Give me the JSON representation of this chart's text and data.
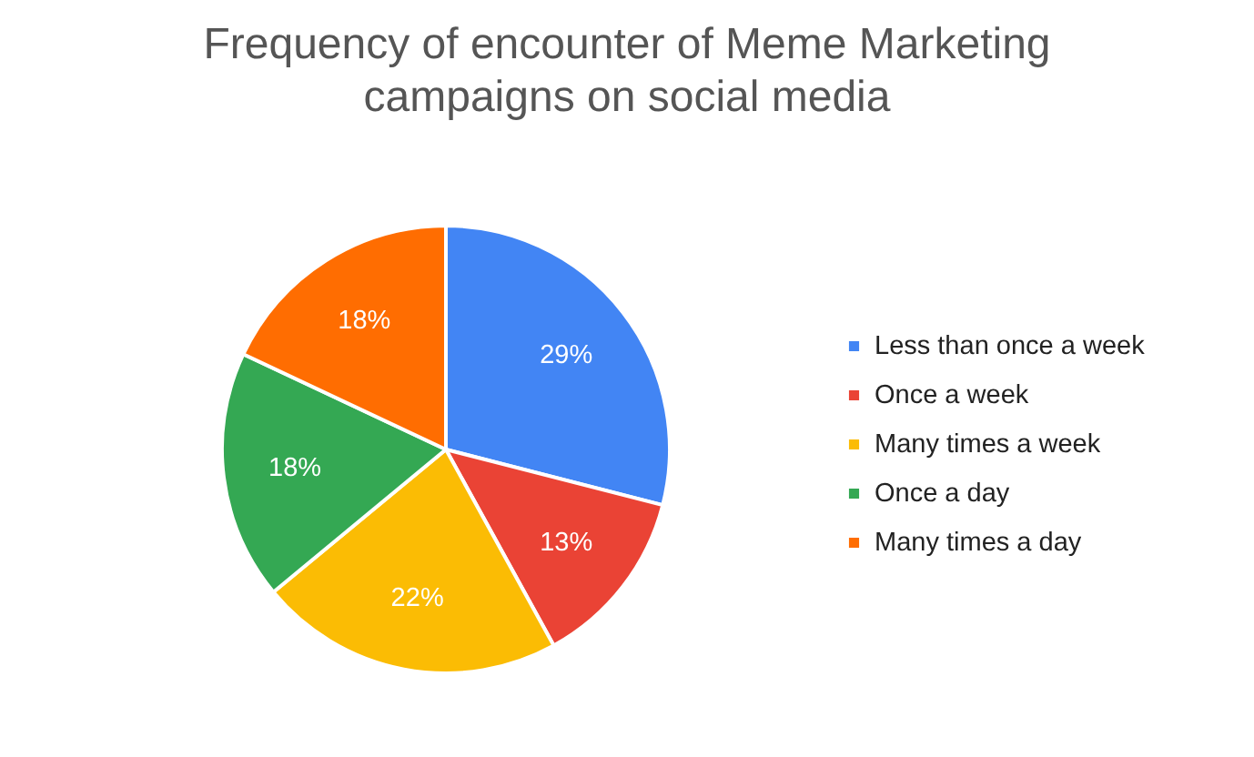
{
  "chart_data": {
    "type": "pie",
    "title": "Frequency of encounter of Meme Marketing campaigns on social media",
    "categories": [
      "Less than once a week",
      "Once a week",
      "Many times a week",
      "Once a day",
      "Many times a day"
    ],
    "values": [
      29,
      13,
      22,
      18,
      18
    ],
    "colors": [
      "#4285f4",
      "#ea4335",
      "#fbbc04",
      "#34a853",
      "#ff6d01"
    ],
    "value_labels": [
      "29%",
      "13%",
      "22%",
      "18%",
      "18%"
    ],
    "legend": "right"
  }
}
